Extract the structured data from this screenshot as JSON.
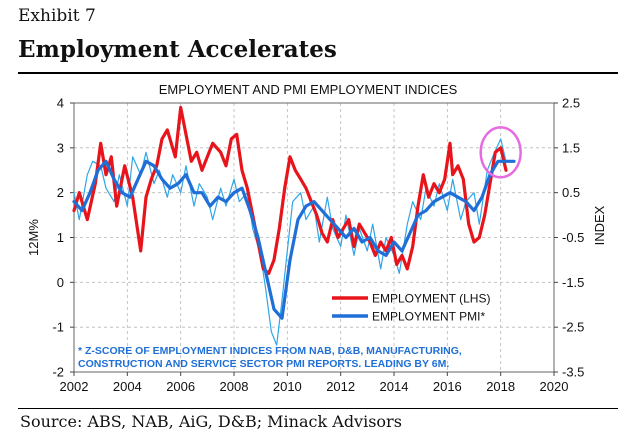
{
  "header": {
    "exhibit": "Exhibit 7",
    "title": "Employment Accelerates"
  },
  "source": "Source: ABS, NAB, AiG, D&B; Minack Advisors",
  "chart_data": {
    "type": "line",
    "title": "EMPLOYMENT AND PMI EMPLOYMENT INDICES",
    "ylabel_left": "12M%",
    "ylabel_right": "INDEX",
    "xlim": [
      2002,
      2020
    ],
    "ylim_left": [
      -2,
      4
    ],
    "ylim_right": [
      -3.5,
      2.5
    ],
    "x_ticks": [
      2002,
      2004,
      2006,
      2008,
      2010,
      2012,
      2014,
      2016,
      2018,
      2020
    ],
    "y_ticks_left": [
      -2,
      -1,
      0,
      1,
      2,
      3,
      4
    ],
    "y_ticks_right": [
      -3.5,
      -2.5,
      -1.5,
      -0.5,
      0.5,
      1.5,
      2.5
    ],
    "y_tick_labels_right": [
      "-3.5",
      "-2.5",
      "-1.5",
      "-0.5",
      "0.5",
      "1.5",
      "2.5"
    ],
    "grid": true,
    "legend_position": "bottom-right",
    "footnote": [
      "* Z-SCORE OF EMPLOYMENT INDICES FROM NAB, D&B, MANUFACTURING,",
      "CONSTRUCTION AND SERVICE SECTOR PMI REPORTS.  LEADING BY 6M."
    ],
    "annotation": "circle around latest values, 2018",
    "colors": {
      "employment": "#e8141b",
      "pmi_smooth": "#1f6fd6",
      "pmi_raw": "#2fa6e8",
      "highlight": "#e66be0",
      "footnote": "#1f6fd6"
    },
    "series": [
      {
        "name": "EMPLOYMENT (LHS)",
        "axis": "left",
        "x": [
          2002.0,
          2002.2,
          2002.5,
          2002.8,
          2003.0,
          2003.2,
          2003.4,
          2003.6,
          2003.9,
          2004.2,
          2004.5,
          2004.7,
          2004.9,
          2005.1,
          2005.3,
          2005.5,
          2005.8,
          2006.0,
          2006.2,
          2006.4,
          2006.6,
          2006.8,
          2007.0,
          2007.2,
          2007.5,
          2007.7,
          2007.9,
          2008.1,
          2008.3,
          2008.5,
          2008.7,
          2008.9,
          2009.1,
          2009.3,
          2009.5,
          2009.7,
          2009.9,
          2010.1,
          2010.3,
          2010.5,
          2010.7,
          2010.9,
          2011.1,
          2011.3,
          2011.5,
          2011.7,
          2011.9,
          2012.1,
          2012.3,
          2012.5,
          2012.7,
          2012.9,
          2013.1,
          2013.3,
          2013.5,
          2013.7,
          2013.9,
          2014.1,
          2014.3,
          2014.5,
          2014.7,
          2014.9,
          2015.1,
          2015.3,
          2015.5,
          2015.7,
          2015.9,
          2016.1,
          2016.2,
          2016.4,
          2016.6,
          2016.8,
          2017.0,
          2017.2,
          2017.4,
          2017.6,
          2017.8,
          2018.0,
          2018.2
        ],
        "values": [
          1.6,
          2.0,
          1.4,
          2.2,
          3.1,
          2.4,
          2.8,
          1.7,
          2.6,
          1.9,
          0.7,
          1.9,
          2.3,
          2.6,
          3.2,
          3.4,
          2.8,
          3.9,
          3.3,
          2.7,
          2.9,
          2.5,
          2.8,
          3.1,
          2.9,
          2.6,
          3.2,
          3.3,
          2.5,
          2.1,
          1.5,
          0.9,
          0.3,
          0.2,
          0.5,
          1.2,
          2.1,
          2.8,
          2.5,
          2.3,
          2.1,
          1.8,
          1.5,
          1.1,
          0.9,
          1.4,
          1.0,
          1.2,
          1.4,
          0.8,
          1.3,
          1.1,
          0.9,
          0.6,
          0.9,
          0.7,
          1.0,
          0.4,
          0.6,
          0.3,
          0.8,
          1.7,
          2.4,
          1.9,
          2.2,
          2.0,
          2.3,
          3.1,
          2.4,
          2.6,
          2.3,
          1.3,
          0.9,
          1.0,
          1.5,
          2.2,
          2.9,
          3.0,
          2.5
        ]
      },
      {
        "name": "EMPLOYMENT PMI*",
        "axis": "right",
        "smoothed": true,
        "x": [
          2002.0,
          2002.3,
          2002.6,
          2002.9,
          2003.2,
          2003.5,
          2003.8,
          2004.1,
          2004.4,
          2004.7,
          2005.0,
          2005.3,
          2005.6,
          2005.9,
          2006.2,
          2006.5,
          2006.8,
          2007.1,
          2007.4,
          2007.7,
          2008.0,
          2008.3,
          2008.6,
          2008.9,
          2009.2,
          2009.5,
          2009.8,
          2010.1,
          2010.4,
          2010.7,
          2011.0,
          2011.3,
          2011.6,
          2011.9,
          2012.2,
          2012.5,
          2012.8,
          2013.1,
          2013.4,
          2013.7,
          2014.0,
          2014.3,
          2014.6,
          2014.9,
          2015.2,
          2015.5,
          2015.8,
          2016.1,
          2016.4,
          2016.7,
          2017.0,
          2017.3,
          2017.6,
          2017.9,
          2018.2,
          2018.5
        ],
        "values": [
          0.3,
          0.1,
          0.5,
          1.0,
          1.2,
          0.8,
          0.5,
          0.4,
          0.8,
          1.2,
          1.1,
          0.8,
          0.6,
          0.7,
          0.9,
          0.5,
          0.5,
          0.2,
          0.4,
          0.3,
          0.5,
          0.6,
          0.1,
          -0.5,
          -1.3,
          -2.1,
          -2.3,
          -1.0,
          -0.1,
          0.2,
          0.3,
          0.1,
          -0.1,
          -0.3,
          -0.5,
          -0.3,
          -0.6,
          -0.5,
          -0.8,
          -0.9,
          -0.6,
          -0.8,
          -0.4,
          0.0,
          0.1,
          0.3,
          0.4,
          0.5,
          0.4,
          0.3,
          0.1,
          0.4,
          0.9,
          1.2,
          1.2,
          1.2
        ]
      },
      {
        "name": "EMPLOYMENT PMI raw",
        "axis": "right",
        "x": [
          2002.0,
          2002.2,
          2002.5,
          2002.7,
          2003.0,
          2003.2,
          2003.5,
          2003.7,
          2004.0,
          2004.2,
          2004.5,
          2004.7,
          2005.0,
          2005.2,
          2005.5,
          2005.7,
          2006.0,
          2006.2,
          2006.5,
          2006.7,
          2007.0,
          2007.2,
          2007.5,
          2007.7,
          2008.0,
          2008.2,
          2008.5,
          2008.7,
          2009.0,
          2009.2,
          2009.4,
          2009.6,
          2009.8,
          2010.0,
          2010.2,
          2010.5,
          2010.7,
          2011.0,
          2011.2,
          2011.5,
          2011.7,
          2012.0,
          2012.2,
          2012.5,
          2012.7,
          2013.0,
          2013.2,
          2013.5,
          2013.7,
          2014.0,
          2014.2,
          2014.5,
          2014.7,
          2015.0,
          2015.2,
          2015.5,
          2015.7,
          2016.0,
          2016.2,
          2016.5,
          2016.7,
          2017.0,
          2017.2,
          2017.5,
          2017.7,
          2018.0,
          2018.2
        ],
        "values": [
          0.5,
          -0.1,
          0.9,
          1.2,
          1.1,
          0.6,
          0.3,
          0.9,
          0.2,
          1.3,
          0.9,
          1.4,
          0.7,
          1.0,
          0.4,
          0.9,
          0.5,
          1.1,
          0.2,
          0.7,
          0.4,
          -0.1,
          0.6,
          0.2,
          0.8,
          0.3,
          0.5,
          -0.3,
          -0.9,
          -1.7,
          -2.6,
          -2.9,
          -1.9,
          -0.8,
          0.3,
          0.5,
          -0.1,
          0.2,
          -0.6,
          0.4,
          -0.3,
          -0.7,
          0.0,
          -0.9,
          -0.3,
          -0.8,
          -0.2,
          -1.2,
          -0.5,
          -0.9,
          -1.3,
          -0.2,
          0.3,
          -0.1,
          0.6,
          0.2,
          0.7,
          0.1,
          0.8,
          -0.1,
          0.3,
          0.5,
          -0.2,
          1.0,
          1.3,
          1.7,
          1.2
        ]
      }
    ]
  }
}
